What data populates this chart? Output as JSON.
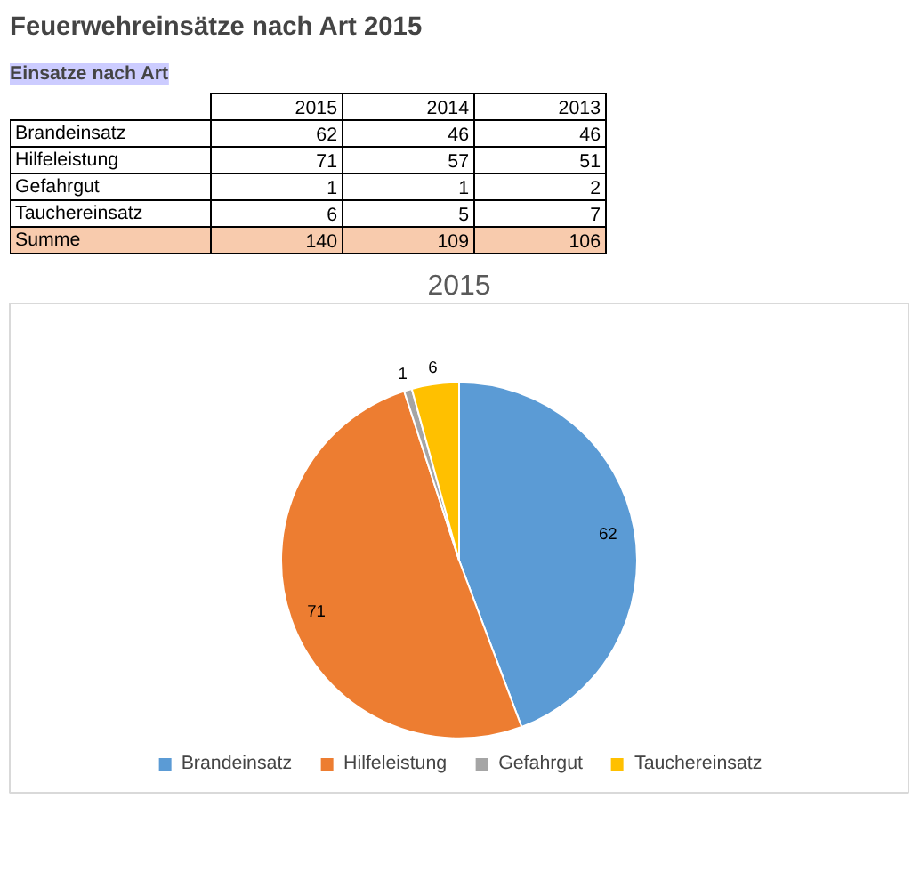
{
  "chart_data": [
    {
      "type": "heatmap",
      "title": "Feuerwehreinsätze nach Art 2015",
      "subtitle": "Einsatze nach Art",
      "categories": [
        "2015",
        "2014",
        "2013"
      ],
      "y_categories": [
        "Brandeinsatz",
        "Hilfeleistung",
        "Gefahrgut",
        "Tauchereinsatz",
        "Summe"
      ],
      "cells": [
        [
          62,
          46,
          46
        ],
        [
          71,
          57,
          51
        ],
        [
          1,
          1,
          2
        ],
        [
          6,
          5,
          7
        ],
        [
          140,
          109,
          106
        ]
      ],
      "data_labels": true
    },
    {
      "type": "pie",
      "title": "2015",
      "categories": [
        "Brandeinsatz",
        "Hilfeleistung",
        "Gefahrgut",
        "Tauchereinsatz"
      ],
      "values": [
        62,
        71,
        1,
        6
      ],
      "colors": [
        "#5b9bd5",
        "#ed7d31",
        "#a5a5a5",
        "#ffc000"
      ],
      "data_labels": true,
      "legend": "bottom"
    }
  ]
}
